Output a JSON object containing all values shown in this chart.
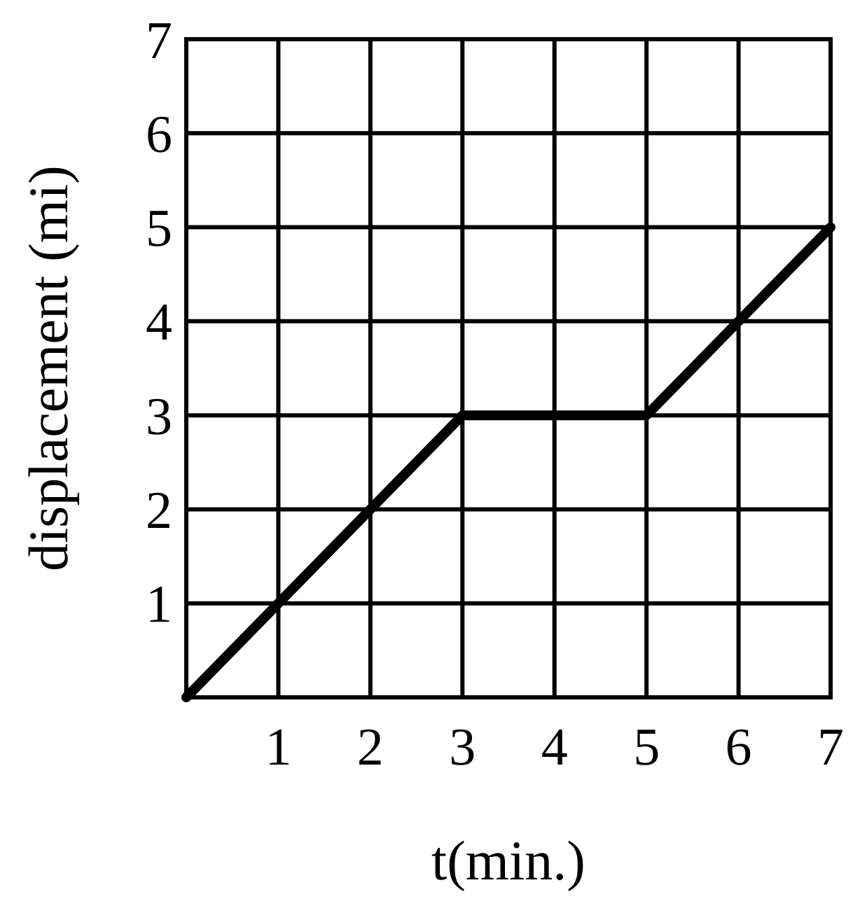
{
  "chart_data": {
    "type": "line",
    "xlabel": "t(min.)",
    "ylabel": "displacement (mi)",
    "x": [
      0,
      3,
      5,
      7
    ],
    "series": [
      {
        "color": "#000000",
        "values": [
          0,
          3,
          3,
          5
        ]
      }
    ],
    "xlim": [
      0,
      7
    ],
    "ylim": [
      0,
      7
    ],
    "xticks": [
      1,
      2,
      3,
      4,
      5,
      6,
      7
    ],
    "yticks": [
      1,
      2,
      3,
      4,
      5,
      6,
      7
    ],
    "grid": true
  }
}
